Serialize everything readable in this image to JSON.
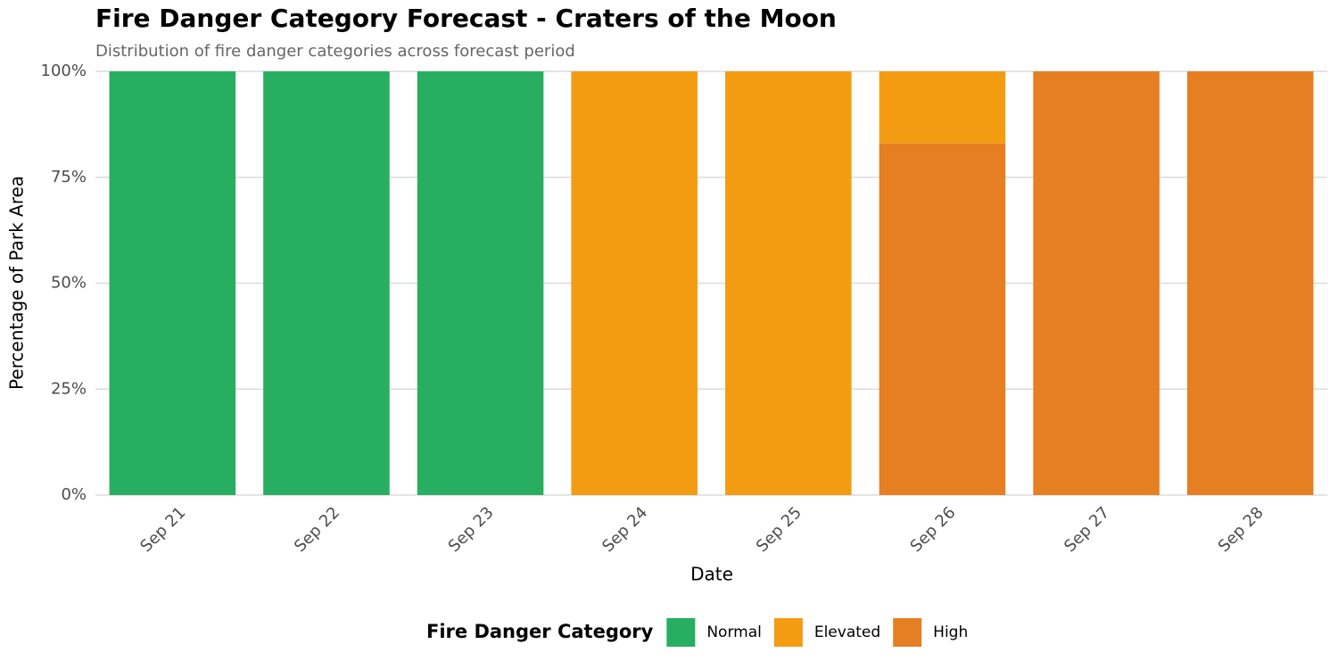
{
  "chart_data": {
    "type": "stacked_bar",
    "title": "Fire Danger Category Forecast - Craters of the Moon",
    "subtitle": "Distribution of fire danger categories across forecast period",
    "x_label": "Date",
    "y_label": "Percentage of Park Area",
    "categories": [
      "Sep 21",
      "Sep 22",
      "Sep 23",
      "Sep 24",
      "Sep 25",
      "Sep 26",
      "Sep 27",
      "Sep 28"
    ],
    "series": [
      {
        "name": "Normal",
        "color": "#27ae60",
        "values": [
          100,
          100,
          100,
          0,
          0,
          0,
          0,
          0
        ]
      },
      {
        "name": "Elevated",
        "color": "#f39c12",
        "values": [
          0,
          0,
          0,
          100,
          100,
          17,
          0,
          0
        ]
      },
      {
        "name": "High",
        "color": "#e67e22",
        "values": [
          0,
          0,
          0,
          0,
          0,
          83,
          100,
          100
        ]
      }
    ],
    "ylim": [
      0,
      100
    ],
    "yticks": [
      {
        "value": 0,
        "label": "0%"
      },
      {
        "value": 25,
        "label": "25%"
      },
      {
        "value": 50,
        "label": "50%"
      },
      {
        "value": 75,
        "label": "75%"
      },
      {
        "value": 100,
        "label": "100%"
      }
    ],
    "grid": true,
    "legend_title": "Fire Danger Category",
    "legend": "bottom"
  }
}
